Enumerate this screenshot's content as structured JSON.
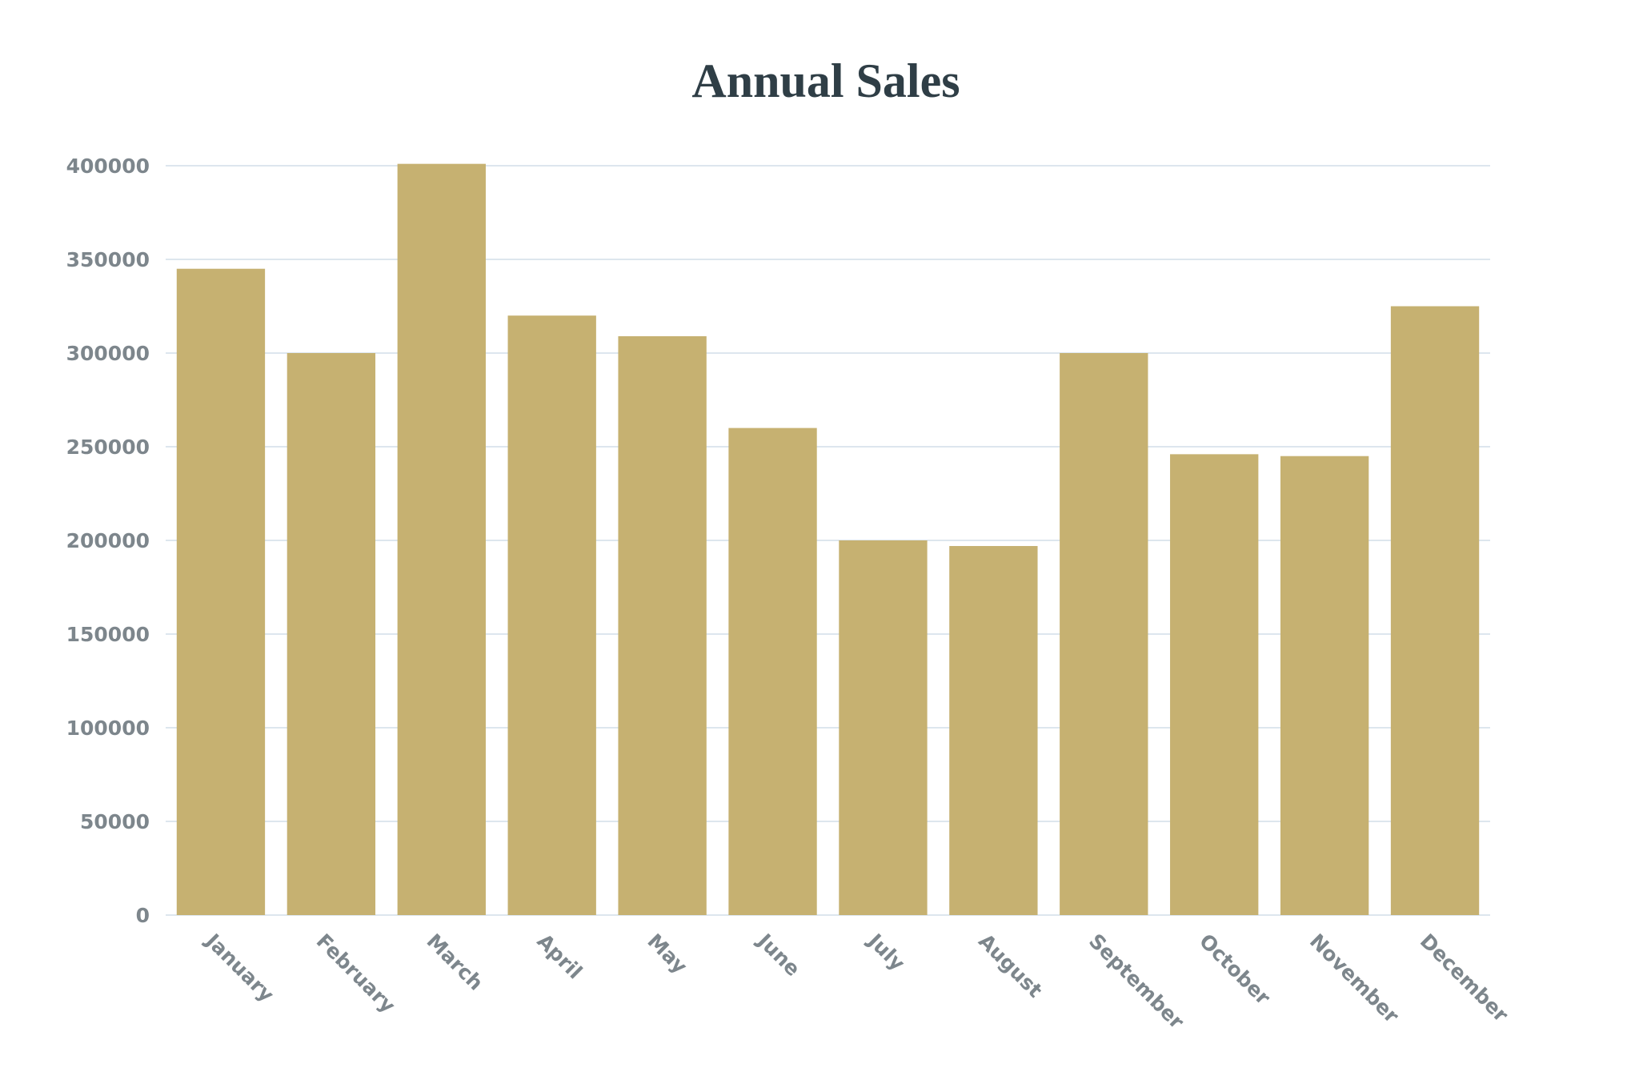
{
  "chart_data": {
    "type": "bar",
    "title": "Annual Sales",
    "xlabel": "",
    "ylabel": "",
    "categories": [
      "January",
      "February",
      "March",
      "April",
      "May",
      "June",
      "July",
      "August",
      "September",
      "October",
      "November",
      "December"
    ],
    "values": [
      345000,
      300000,
      401000,
      320000,
      309000,
      260000,
      200000,
      197000,
      300000,
      246000,
      245000,
      325000
    ],
    "ylim": [
      0,
      400000
    ],
    "yticks": [
      0,
      50000,
      100000,
      150000,
      200000,
      250000,
      300000,
      350000,
      400000
    ],
    "grid": true,
    "legend": "none",
    "bar_color": "#c6b171",
    "x_tick_rotation": 45
  }
}
